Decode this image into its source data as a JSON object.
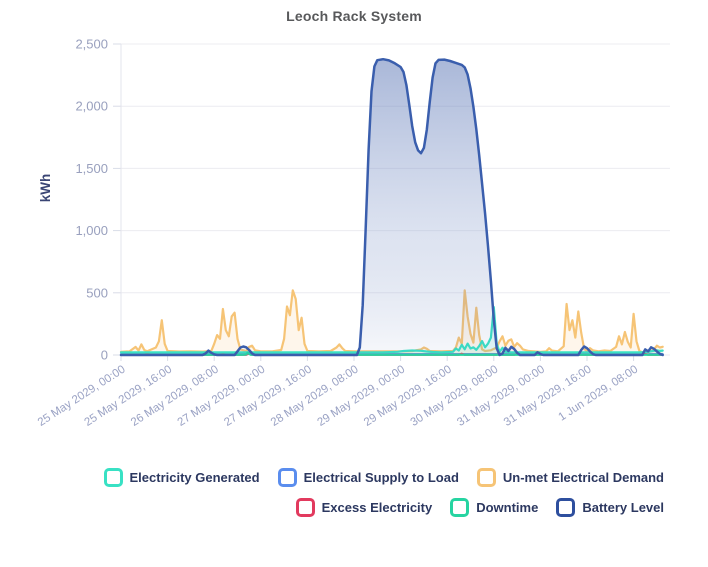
{
  "title": "Leoch Rack System",
  "y_axis": {
    "label": "kWh"
  },
  "legend": [
    {
      "label": "Electricity Generated",
      "color": "#38E1C4"
    },
    {
      "label": "Electrical Supply to Load",
      "color": "#5A8DEE"
    },
    {
      "label": "Un-met Electrical Demand",
      "color": "#F6C476"
    },
    {
      "label": "Excess Electricity",
      "color": "#E23A5E"
    },
    {
      "label": "Downtime",
      "color": "#26D4A1"
    },
    {
      "label": "Battery Level",
      "color": "#2E4F9E"
    }
  ],
  "chart_data": {
    "type": "area",
    "title": "Leoch Rack System",
    "xlabel": "",
    "ylabel": "kWh",
    "ylim": [
      0,
      2500
    ],
    "grid": true,
    "legend_position": "bottom",
    "x_unit": "hours since 25 May 2029 00:00",
    "x_domain": [
      0,
      188.5
    ],
    "y_ticks": [
      "0",
      "500",
      "1,000",
      "1,500",
      "2,000",
      "2,500"
    ],
    "x_tick_hours": [
      0,
      16,
      32,
      48,
      64,
      80,
      96,
      112,
      128,
      144,
      160,
      176
    ],
    "x_tick_labels": [
      "25 May 2029, 00:00",
      "25 May 2029, 16:00",
      "26 May 2029, 08:00",
      "27 May 2029, 00:00",
      "27 May 2029, 16:00",
      "28 May 2029, 08:00",
      "29 May 2029, 00:00",
      "29 May 2029, 16:00",
      "30 May 2029, 08:00",
      "31 May 2029, 00:00",
      "31 May 2029, 16:00",
      "1 Jun 2029, 08:00"
    ],
    "series": [
      {
        "name": "Electrical Supply to Load",
        "color": "#5A8DEE",
        "width": 2,
        "fill": "none",
        "points": [
          [
            0,
            8
          ],
          [
            186,
            8
          ]
        ]
      },
      {
        "name": "Excess Electricity",
        "color": "#E23A5E",
        "width": 2,
        "fill": "none",
        "points": [
          [
            0,
            1
          ],
          [
            8,
            1
          ],
          [
            9,
            12
          ],
          [
            10,
            1
          ],
          [
            34,
            1
          ],
          [
            35,
            9
          ],
          [
            36,
            1
          ],
          [
            43,
            1
          ],
          [
            44,
            13
          ],
          [
            45,
            1
          ],
          [
            116,
            1
          ],
          [
            117,
            11
          ],
          [
            118,
            1
          ],
          [
            129,
            1
          ],
          [
            130,
            15
          ],
          [
            131,
            1
          ],
          [
            135,
            1
          ],
          [
            136,
            9
          ],
          [
            137,
            1
          ],
          [
            179,
            1
          ],
          [
            180,
            9
          ],
          [
            181,
            1
          ],
          [
            186,
            1
          ]
        ]
      },
      {
        "name": "Un-met Electrical Demand",
        "color": "#F6C476",
        "width": 2.2,
        "fill": "flat",
        "fill_color": "rgba(246,196,118,0.15)",
        "points": [
          [
            0,
            26
          ],
          [
            3,
            30
          ],
          [
            5,
            65
          ],
          [
            6,
            35
          ],
          [
            7,
            85
          ],
          [
            8,
            40
          ],
          [
            9,
            30
          ],
          [
            12,
            60
          ],
          [
            13,
            110
          ],
          [
            14,
            280
          ],
          [
            15,
            90
          ],
          [
            16,
            32
          ],
          [
            20,
            28
          ],
          [
            24,
            30
          ],
          [
            28,
            27
          ],
          [
            31,
            32
          ],
          [
            32,
            90
          ],
          [
            33,
            160
          ],
          [
            34,
            130
          ],
          [
            35,
            370
          ],
          [
            36,
            200
          ],
          [
            37,
            150
          ],
          [
            38,
            310
          ],
          [
            39,
            340
          ],
          [
            40,
            130
          ],
          [
            41,
            45
          ],
          [
            43,
            32
          ],
          [
            44,
            65
          ],
          [
            45,
            75
          ],
          [
            46,
            38
          ],
          [
            48,
            30
          ],
          [
            52,
            30
          ],
          [
            55,
            40
          ],
          [
            56,
            130
          ],
          [
            57,
            390
          ],
          [
            58,
            320
          ],
          [
            59,
            520
          ],
          [
            60,
            450
          ],
          [
            61,
            200
          ],
          [
            62,
            300
          ],
          [
            63,
            90
          ],
          [
            64,
            32
          ],
          [
            68,
            30
          ],
          [
            72,
            32
          ],
          [
            74,
            60
          ],
          [
            75,
            85
          ],
          [
            76,
            55
          ],
          [
            77,
            32
          ],
          [
            80,
            30
          ],
          [
            84,
            30
          ],
          [
            88,
            30
          ],
          [
            92,
            30
          ],
          [
            96,
            30
          ],
          [
            100,
            32
          ],
          [
            103,
            45
          ],
          [
            104,
            60
          ],
          [
            105,
            50
          ],
          [
            106,
            32
          ],
          [
            110,
            30
          ],
          [
            114,
            32
          ],
          [
            115,
            60
          ],
          [
            116,
            140
          ],
          [
            117,
            90
          ],
          [
            118,
            520
          ],
          [
            119,
            310
          ],
          [
            120,
            170
          ],
          [
            121,
            100
          ],
          [
            122,
            380
          ],
          [
            123,
            160
          ],
          [
            124,
            45
          ],
          [
            125,
            32
          ],
          [
            127,
            38
          ],
          [
            129,
            60
          ],
          [
            130,
            110
          ],
          [
            131,
            150
          ],
          [
            132,
            75
          ],
          [
            133,
            115
          ],
          [
            134,
            125
          ],
          [
            135,
            65
          ],
          [
            136,
            95
          ],
          [
            137,
            75
          ],
          [
            138,
            45
          ],
          [
            140,
            32
          ],
          [
            144,
            26
          ],
          [
            146,
            30
          ],
          [
            147,
            55
          ],
          [
            148,
            35
          ],
          [
            150,
            30
          ],
          [
            152,
            70
          ],
          [
            153,
            410
          ],
          [
            154,
            200
          ],
          [
            155,
            280
          ],
          [
            156,
            140
          ],
          [
            157,
            350
          ],
          [
            158,
            180
          ],
          [
            159,
            50
          ],
          [
            160,
            30
          ],
          [
            161,
            55
          ],
          [
            162,
            38
          ],
          [
            164,
            30
          ],
          [
            166,
            36
          ],
          [
            168,
            32
          ],
          [
            170,
            65
          ],
          [
            171,
            150
          ],
          [
            172,
            85
          ],
          [
            173,
            185
          ],
          [
            174,
            105
          ],
          [
            175,
            60
          ],
          [
            176,
            330
          ],
          [
            177,
            110
          ],
          [
            178,
            32
          ],
          [
            179,
            22
          ],
          [
            180,
            26
          ],
          [
            181,
            22
          ],
          [
            183,
            45
          ],
          [
            184,
            75
          ],
          [
            185,
            60
          ],
          [
            186,
            66
          ]
        ]
      },
      {
        "name": "Electricity Generated",
        "color": "#38E1C4",
        "width": 2.2,
        "fill": "flat",
        "fill_color": "rgba(56,225,196,0.12)",
        "points": [
          [
            0,
            22
          ],
          [
            20,
            22
          ],
          [
            40,
            22
          ],
          [
            60,
            22
          ],
          [
            80,
            22
          ],
          [
            90,
            22
          ],
          [
            95,
            26
          ],
          [
            97,
            32
          ],
          [
            100,
            36
          ],
          [
            103,
            34
          ],
          [
            105,
            28
          ],
          [
            107,
            24
          ],
          [
            110,
            22
          ],
          [
            114,
            26
          ],
          [
            115,
            52
          ],
          [
            116,
            36
          ],
          [
            117,
            82
          ],
          [
            118,
            46
          ],
          [
            119,
            92
          ],
          [
            120,
            52
          ],
          [
            121,
            62
          ],
          [
            122,
            42
          ],
          [
            123,
            72
          ],
          [
            124,
            112
          ],
          [
            125,
            62
          ],
          [
            126,
            92
          ],
          [
            127,
            140
          ],
          [
            128,
            385
          ],
          [
            129,
            90
          ],
          [
            130,
            24
          ],
          [
            131,
            58
          ],
          [
            132,
            26
          ],
          [
            134,
            22
          ],
          [
            140,
            22
          ],
          [
            150,
            22
          ],
          [
            160,
            22
          ],
          [
            170,
            22
          ],
          [
            178,
            22
          ],
          [
            181,
            26
          ],
          [
            183,
            34
          ],
          [
            184,
            38
          ],
          [
            185,
            33
          ],
          [
            186,
            35
          ]
        ]
      },
      {
        "name": "Downtime",
        "color": "#26D4A1",
        "width": 2.2,
        "fill": "none",
        "points": [
          [
            0,
            2
          ],
          [
            42,
            2
          ],
          [
            43,
            5
          ],
          [
            43.5,
            20
          ],
          [
            44.5,
            2
          ],
          [
            186,
            2
          ]
        ]
      },
      {
        "name": "Battery Level",
        "color": "#3A5EAD",
        "width": 2.5,
        "fill": "gradient",
        "fill_color": "#5470B2",
        "points": [
          [
            0,
            0
          ],
          [
            28,
            0
          ],
          [
            29,
            12
          ],
          [
            30,
            35
          ],
          [
            31,
            18
          ],
          [
            32,
            6
          ],
          [
            33,
            0
          ],
          [
            39,
            0
          ],
          [
            40,
            30
          ],
          [
            41,
            60
          ],
          [
            42,
            68
          ],
          [
            43,
            62
          ],
          [
            44,
            40
          ],
          [
            45,
            12
          ],
          [
            46,
            0
          ],
          [
            81,
            0
          ],
          [
            82,
            60
          ],
          [
            83,
            400
          ],
          [
            84,
            1000
          ],
          [
            85,
            1650
          ],
          [
            86,
            2120
          ],
          [
            87,
            2320
          ],
          [
            88,
            2370
          ],
          [
            90,
            2378
          ],
          [
            92,
            2368
          ],
          [
            94,
            2345
          ],
          [
            96,
            2315
          ],
          [
            97,
            2275
          ],
          [
            98,
            2170
          ],
          [
            99,
            2010
          ],
          [
            100,
            1840
          ],
          [
            101,
            1710
          ],
          [
            102,
            1645
          ],
          [
            103,
            1622
          ],
          [
            104,
            1665
          ],
          [
            105,
            1810
          ],
          [
            106,
            2030
          ],
          [
            107,
            2230
          ],
          [
            108,
            2345
          ],
          [
            109,
            2372
          ],
          [
            111,
            2375
          ],
          [
            113,
            2363
          ],
          [
            115,
            2348
          ],
          [
            117,
            2332
          ],
          [
            118,
            2312
          ],
          [
            119,
            2255
          ],
          [
            120,
            2145
          ],
          [
            121,
            1995
          ],
          [
            122,
            1815
          ],
          [
            123,
            1605
          ],
          [
            124,
            1375
          ],
          [
            125,
            1135
          ],
          [
            126,
            875
          ],
          [
            127,
            595
          ],
          [
            128,
            285
          ],
          [
            129,
            55
          ],
          [
            130,
            0
          ],
          [
            131,
            12
          ],
          [
            132,
            58
          ],
          [
            133,
            32
          ],
          [
            134,
            66
          ],
          [
            135,
            48
          ],
          [
            136,
            18
          ],
          [
            137,
            0
          ],
          [
            142,
            0
          ],
          [
            143,
            22
          ],
          [
            144,
            8
          ],
          [
            145,
            0
          ],
          [
            157,
            0
          ],
          [
            158,
            40
          ],
          [
            159,
            68
          ],
          [
            160,
            55
          ],
          [
            161,
            30
          ],
          [
            162,
            8
          ],
          [
            163,
            0
          ],
          [
            179,
            0
          ],
          [
            180,
            45
          ],
          [
            181,
            30
          ],
          [
            182,
            62
          ],
          [
            183,
            50
          ],
          [
            184,
            28
          ],
          [
            185,
            10
          ],
          [
            186,
            0
          ]
        ]
      }
    ]
  }
}
